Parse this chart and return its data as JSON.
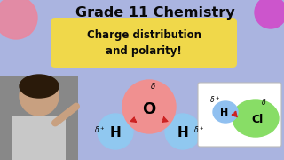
{
  "bg_color": "#aab4e0",
  "title": "Grade 11 Chemistry",
  "title_color": "#0a0a0a",
  "subtitle_line1": "Charge distribution",
  "subtitle_line2": "and polarity!",
  "subtitle_bg": "#f0d84a",
  "subtitle_color": "#0a0a0a",
  "water_O_color": "#f09090",
  "water_H_color": "#90c8f0",
  "hcl_H_color": "#90c0f0",
  "hcl_Cl_color": "#88dd66",
  "hcl_box_color": "#ffffff",
  "arrow_color": "#cc2222",
  "blob_tl_color": "#e888a0",
  "blob_tr_color": "#cc55cc",
  "blob_bl_color": "#f0a880"
}
